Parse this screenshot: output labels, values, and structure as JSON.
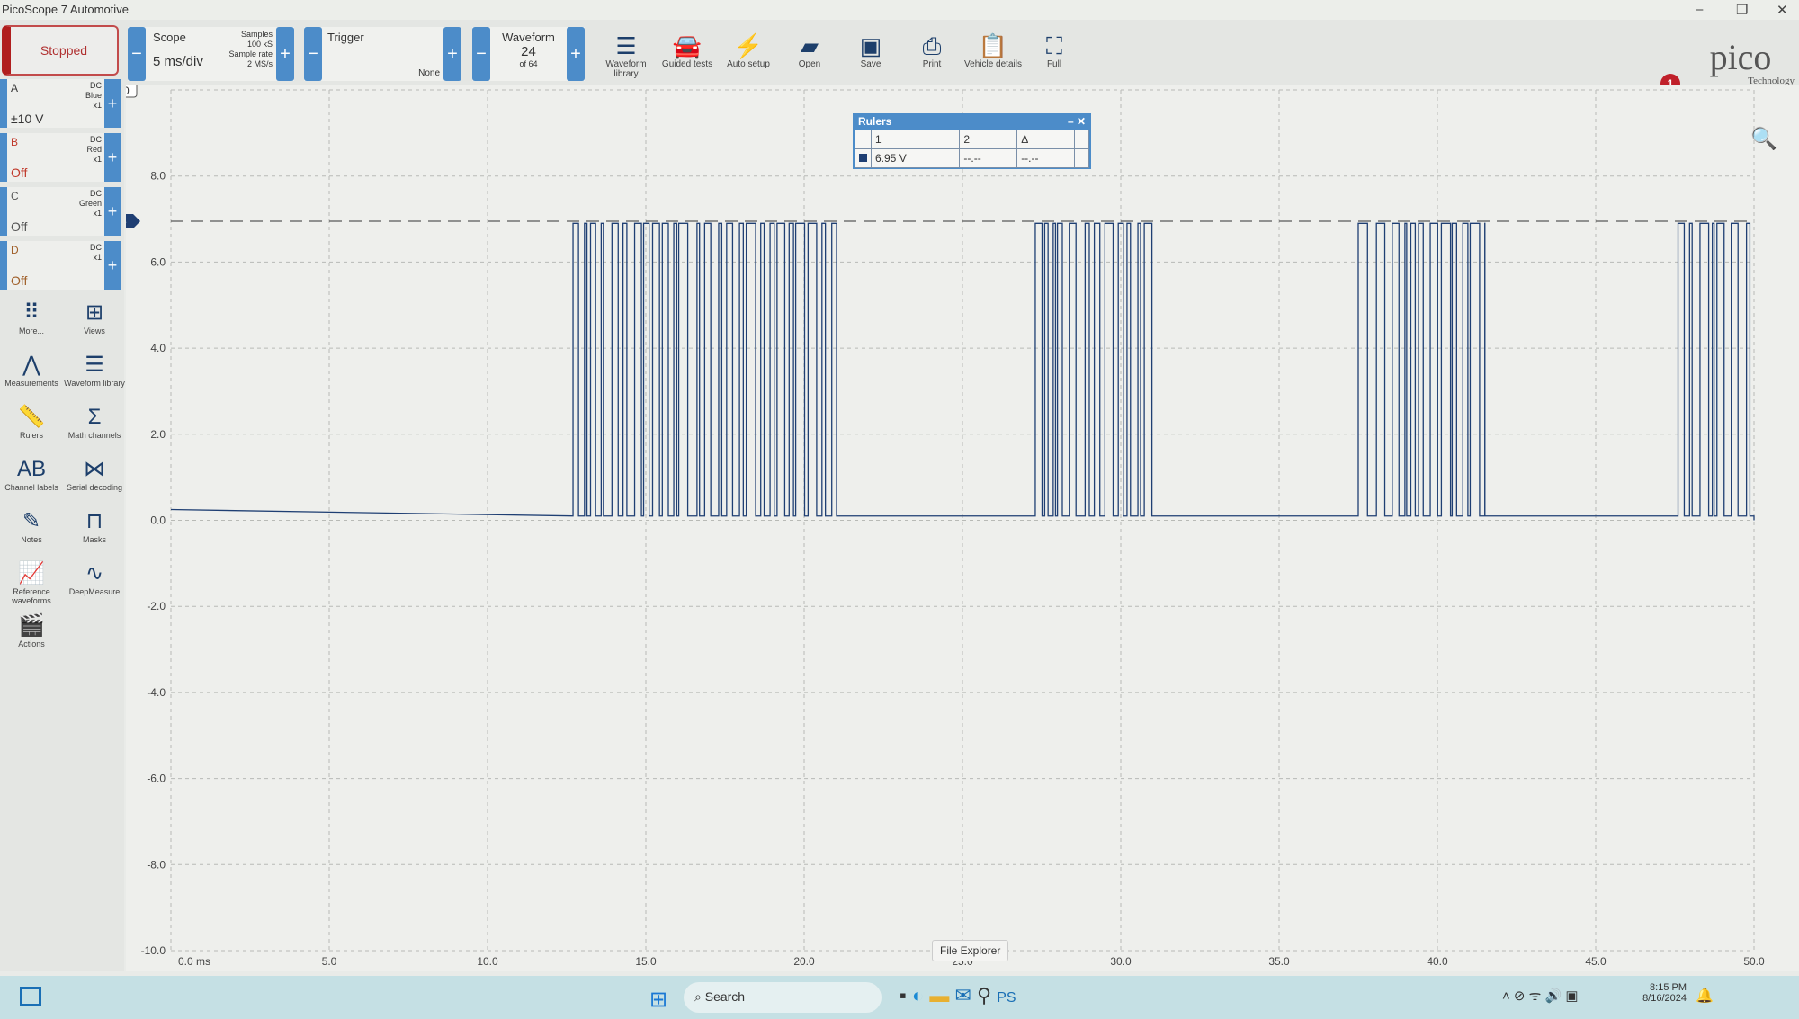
{
  "app": {
    "title": "PicoScope 7 Automotive",
    "status": "Stopped",
    "notification_count": "1",
    "logo": "pico Technology"
  },
  "scope": {
    "label": "Scope",
    "timebase": "5 ms/div",
    "samples_label": "Samples",
    "samples": "100 kS",
    "rate_label": "Sample rate",
    "rate": "2 MS/s"
  },
  "trigger": {
    "label": "Trigger",
    "mode": "None"
  },
  "waveform": {
    "label": "Waveform",
    "index": "24",
    "of": "of 64"
  },
  "toolbar": [
    {
      "label": "Waveform library",
      "icon": "stack-icon"
    },
    {
      "label": "Guided tests",
      "icon": "car-icon"
    },
    {
      "label": "Auto setup",
      "icon": "wand-icon"
    },
    {
      "label": "Open",
      "icon": "folder-icon"
    },
    {
      "label": "Save",
      "icon": "floppy-icon"
    },
    {
      "label": "Print",
      "icon": "printer-icon"
    },
    {
      "label": "Vehicle details",
      "icon": "clipboard-icon"
    },
    {
      "label": "Full",
      "icon": "fullscreen-icon"
    }
  ],
  "channels": [
    {
      "name": "A",
      "coupling": "DC",
      "color": "Blue",
      "probe": "x1",
      "range": "±10 V",
      "name_color": "#333333"
    },
    {
      "name": "B",
      "coupling": "DC",
      "color": "Red",
      "probe": "x1",
      "range": "Off",
      "name_color": "#c0392b"
    },
    {
      "name": "C",
      "coupling": "DC",
      "color": "Green",
      "probe": "x1",
      "range": "Off",
      "name_color": "#555555"
    },
    {
      "name": "D",
      "coupling": "DC",
      "color": "",
      "probe": "x1",
      "range": "Off",
      "name_color": "#a0602a"
    }
  ],
  "tools": [
    "More...",
    "Views",
    "Measurements",
    "Waveform library",
    "Rulers",
    "Math channels",
    "Channel labels",
    "Serial decoding",
    "Notes",
    "Masks",
    "Reference waveforms",
    "DeepMeasure",
    "Actions"
  ],
  "rulers": {
    "title": "Rulers",
    "headers": [
      "1",
      "2",
      "Δ"
    ],
    "values": [
      "6.95 V",
      "--.--",
      "--.--"
    ],
    "marker": "6.95"
  },
  "chart_data": {
    "type": "line",
    "xlabel": "ms",
    "ylabel": "V",
    "xlim": [
      0,
      50
    ],
    "ylim": [
      -10,
      10
    ],
    "x_ticks": [
      "0.0 ms",
      "5.0",
      "10.0",
      "15.0",
      "20.0",
      "25.0",
      "30.0",
      "35.0",
      "40.0",
      "45.0",
      "50.0"
    ],
    "y_ticks": [
      "10.0",
      "8.0",
      "6.0",
      "4.0",
      "2.0",
      "0.0",
      "-2.0",
      "-4.0",
      "-6.0",
      "-8.0",
      "-10.0"
    ],
    "grid": true,
    "series_color": "#1f3f73",
    "low_level_v": 0.1,
    "high_level_v": 6.9,
    "bursts_ms": [
      [
        12.7,
        17.05
      ],
      [
        17.3,
        21.05
      ],
      [
        27.3,
        31.0
      ],
      [
        37.5,
        41.5
      ],
      [
        47.6,
        50
      ]
    ],
    "ruler_v": 6.95
  },
  "taskbar": {
    "search": "Search",
    "time": "8:15 PM",
    "date": "8/16/2024",
    "tooltip": "File Explorer"
  }
}
